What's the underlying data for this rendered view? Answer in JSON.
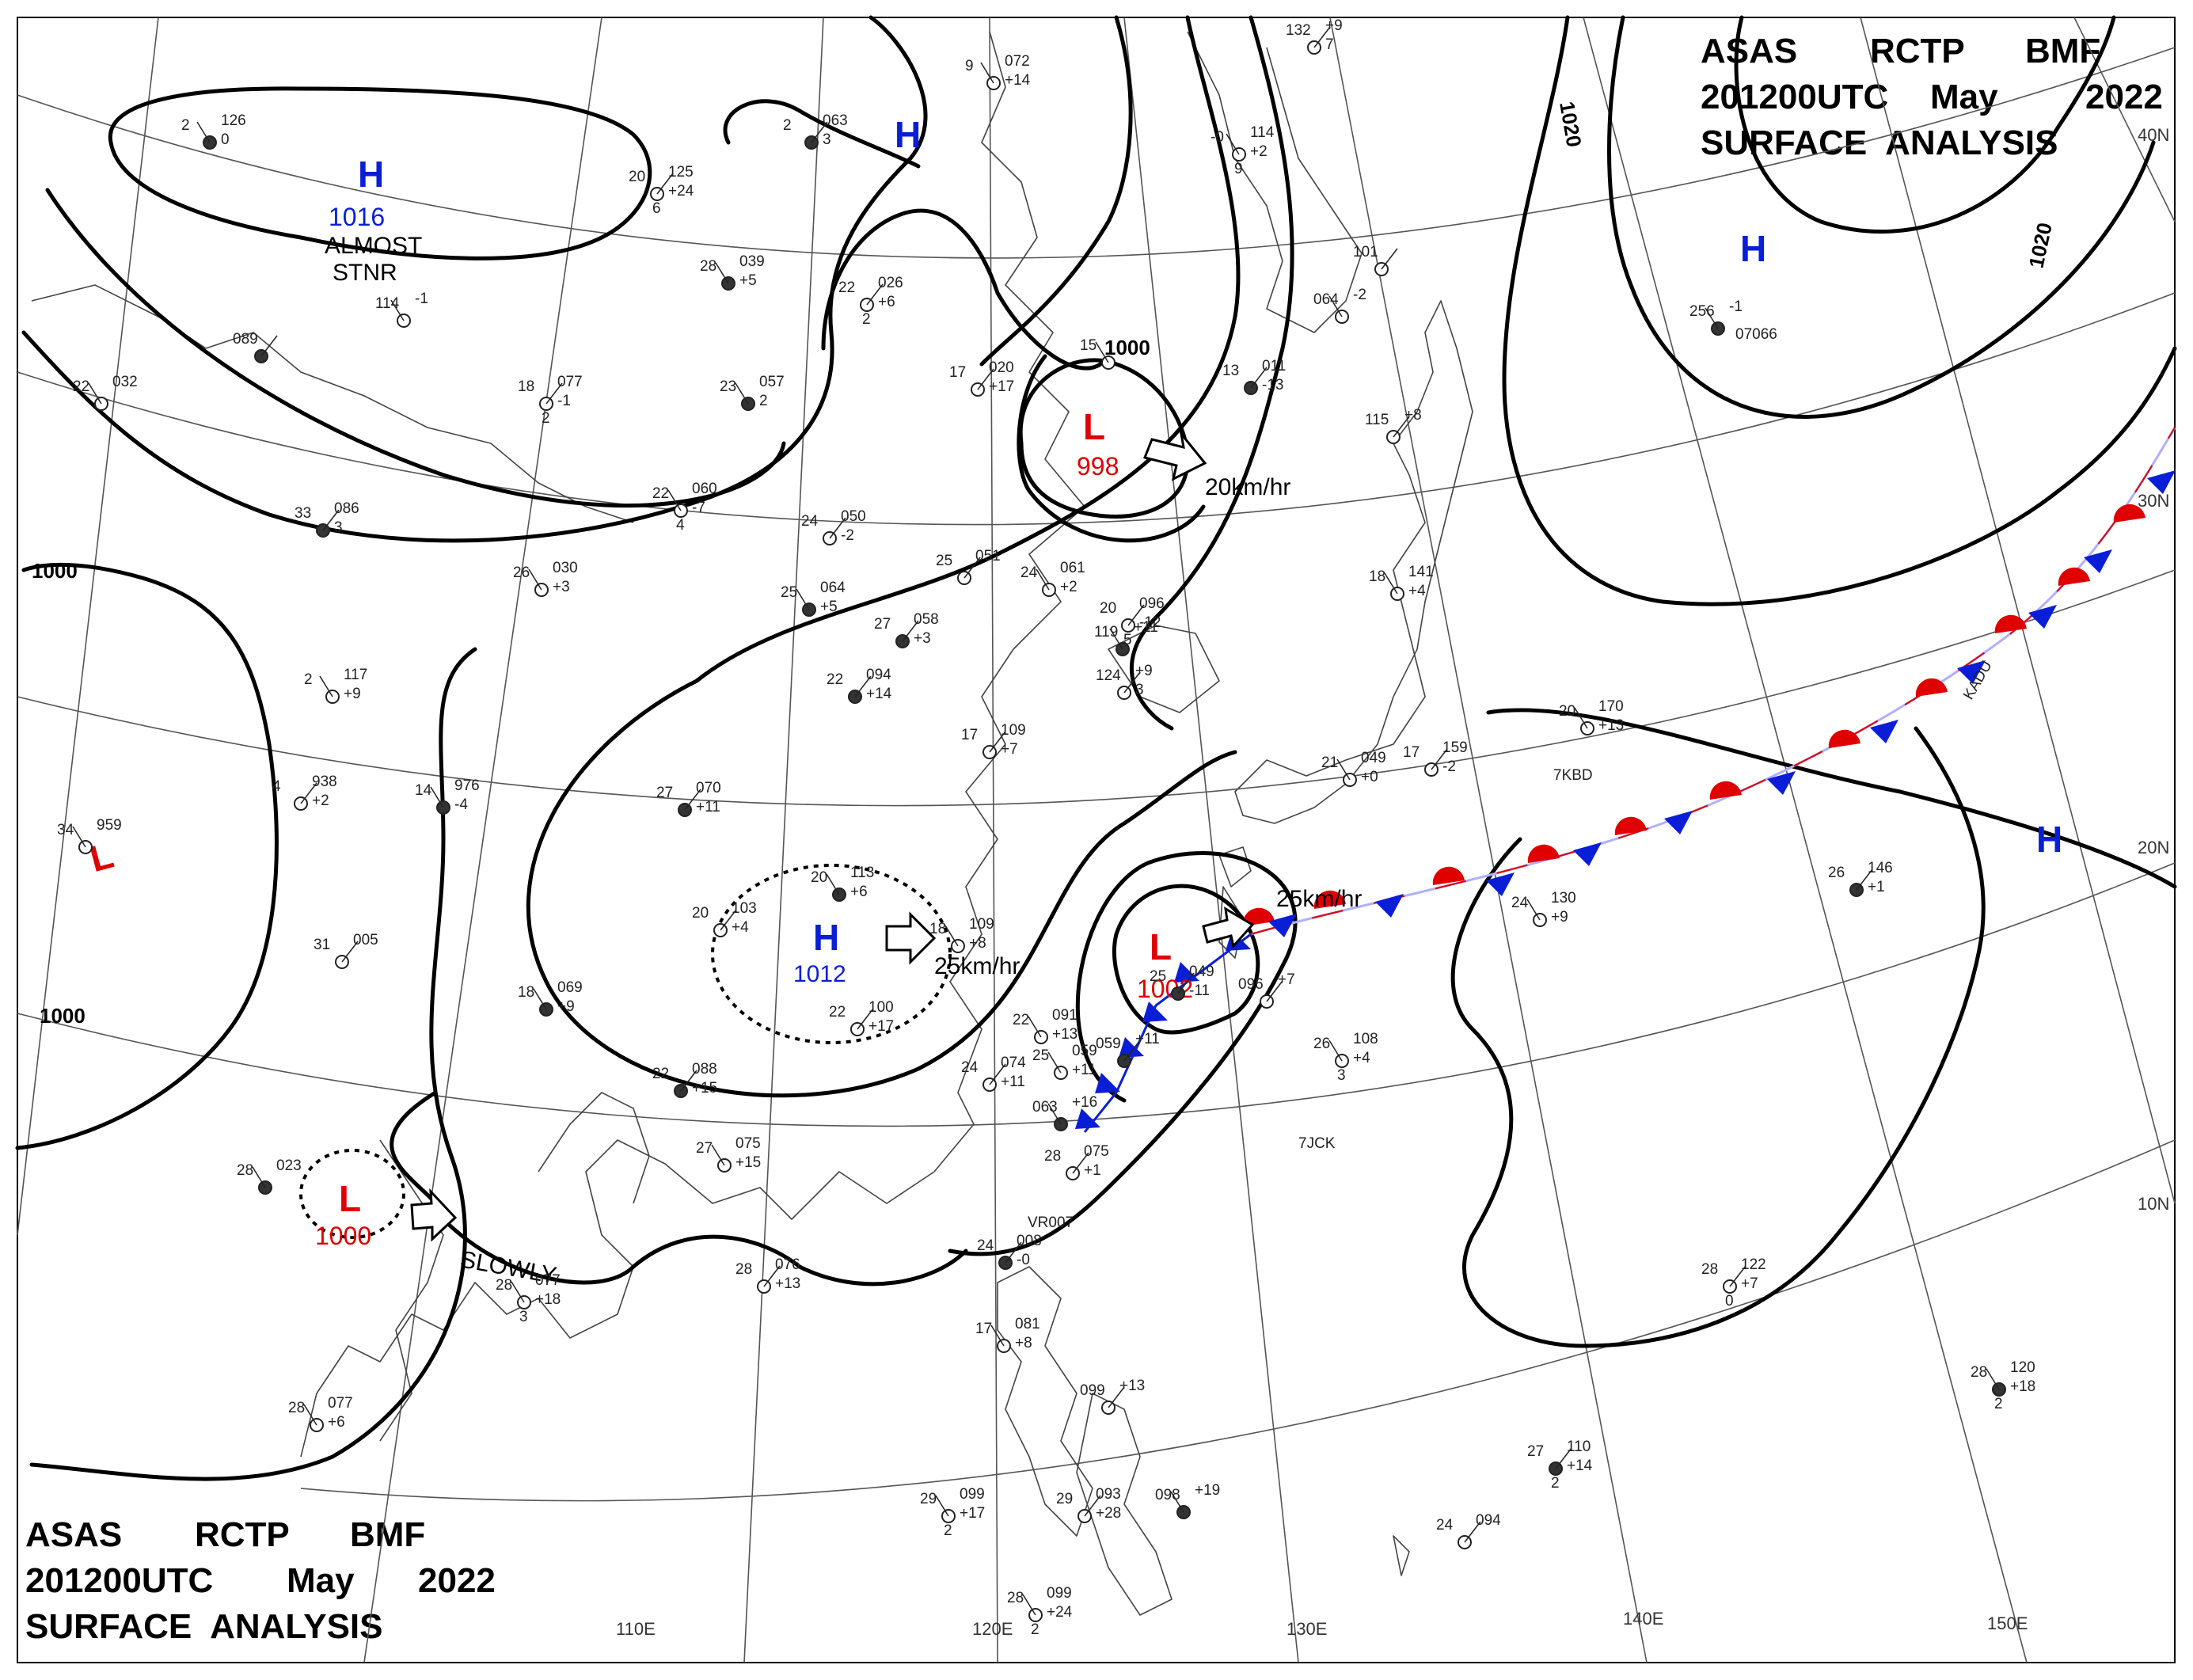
{
  "header": {
    "line1": [
      "ASAS",
      "RCTP",
      "BMF"
    ],
    "line2": [
      "201200UTC",
      "May",
      "2022"
    ],
    "line3": "SURFACE  ANALYSIS"
  },
  "colors": {
    "high": "#0a1ed8",
    "low": "#e00000",
    "isobar": "#000000",
    "grid": "#555555",
    "coast": "#444444",
    "front_warm": "#e00000",
    "front_cold": "#0a1ed8"
  },
  "graticule": {
    "longitude_labels": [
      "110E",
      "120E",
      "130E",
      "140E",
      "150E"
    ],
    "latitude_labels": [
      "40N",
      "30N",
      "20N",
      "10N"
    ]
  },
  "isobar_labels": [
    "1000",
    "1000",
    "1000",
    "1020",
    "1020"
  ],
  "pressure_systems": [
    {
      "type": "H",
      "pressure": "1016",
      "note": "ALMOST STNR"
    },
    {
      "type": "H",
      "pressure": ""
    },
    {
      "type": "H",
      "pressure": ""
    },
    {
      "type": "H",
      "pressure": ""
    },
    {
      "type": "L",
      "pressure": "998",
      "motion": "20km/hr"
    },
    {
      "type": "L",
      "pressure": ""
    },
    {
      "type": "H",
      "pressure": "1012",
      "motion": "25km/hr"
    },
    {
      "type": "L",
      "pressure": "1002",
      "motion": "25km/hr"
    },
    {
      "type": "L",
      "pressure": "1000",
      "motion": "SLOWLY"
    }
  ],
  "station_ids": [
    "KADU",
    "7KBD",
    "7JCK",
    "VR007",
    "07066"
  ],
  "station_obs": [
    [
      "2",
      "126",
      "0"
    ],
    [
      "20",
      "125",
      "+24",
      "6"
    ],
    [
      "9",
      "072",
      "+14"
    ],
    [
      "2",
      "063",
      "3"
    ],
    [
      "-0",
      "114",
      "+2",
      "9"
    ],
    [
      "132",
      "+9",
      "7"
    ],
    [
      "28",
      "039",
      "+5"
    ],
    [
      "22",
      "026",
      "+6",
      "2"
    ],
    [
      "114",
      "-1"
    ],
    [
      "089"
    ],
    [
      "22",
      "032"
    ],
    [
      "18",
      "077",
      "-1",
      "2"
    ],
    [
      "23",
      "057",
      "2"
    ],
    [
      "17",
      "020",
      "+17"
    ],
    [
      "15"
    ],
    [
      "13",
      "011",
      "-13"
    ],
    [
      "064",
      "-2"
    ],
    [
      "101"
    ],
    [
      "256",
      "-1"
    ],
    [
      "115",
      "+8"
    ],
    [
      "22",
      "060",
      "-7",
      "4"
    ],
    [
      "33",
      "086",
      "3"
    ],
    [
      "26",
      "030",
      "+3"
    ],
    [
      "24",
      "050",
      "-2"
    ],
    [
      "25",
      "064",
      "+5"
    ],
    [
      "25",
      "051"
    ],
    [
      "24",
      "061",
      "+2"
    ],
    [
      "27",
      "058",
      "+3"
    ],
    [
      "18",
      "141",
      "+4"
    ],
    [
      "20",
      "096",
      "-12",
      "5"
    ],
    [
      "119",
      "+11"
    ],
    [
      "124",
      "+9",
      "3"
    ],
    [
      "2",
      "117",
      "+9"
    ],
    [
      "22",
      "094",
      "+14"
    ],
    [
      "20",
      "170",
      "+13"
    ],
    [
      "17",
      "109",
      "+7"
    ],
    [
      "14",
      "976",
      "-4"
    ],
    [
      "4",
      "938",
      "+2"
    ],
    [
      "34",
      "959"
    ],
    [
      "27",
      "070",
      "+11"
    ],
    [
      "21",
      "049",
      "+0"
    ],
    [
      "17",
      "159",
      "-2"
    ],
    [
      "20",
      "113",
      "+6"
    ],
    [
      "20",
      "103",
      "+4"
    ],
    [
      "18",
      "109",
      "+8"
    ],
    [
      "26",
      "146",
      "+1"
    ],
    [
      "24",
      "130",
      "+9"
    ],
    [
      "31",
      "005"
    ],
    [
      "18",
      "069",
      "+9"
    ],
    [
      "22",
      "100",
      "+17"
    ],
    [
      "22",
      "091",
      "+13"
    ],
    [
      "059",
      "+11"
    ],
    [
      "25",
      "059",
      "+11"
    ],
    [
      "24",
      "074",
      "+11"
    ],
    [
      "063",
      "+16"
    ],
    [
      "096",
      "+7"
    ],
    [
      "26",
      "108",
      "+4",
      "3"
    ],
    [
      "22",
      "088",
      "+15"
    ],
    [
      "27",
      "075",
      "+15"
    ],
    [
      "28",
      "075",
      "+1"
    ],
    [
      "28",
      "023"
    ],
    [
      "28",
      "076",
      "+13"
    ],
    [
      "28",
      "077",
      "+18",
      "3"
    ],
    [
      "24",
      "008",
      "-0"
    ],
    [
      "17",
      "081",
      "+8"
    ],
    [
      "28",
      "122",
      "+7",
      "0"
    ],
    [
      "28",
      "120",
      "+18",
      "2"
    ],
    [
      "099",
      "+13"
    ],
    [
      "28",
      "077",
      "+6"
    ],
    [
      "27",
      "110",
      "+14",
      "2"
    ],
    [
      "29",
      "099",
      "+17",
      "2"
    ],
    [
      "29",
      "093",
      "+28"
    ],
    [
      "098",
      "+19"
    ],
    [
      "24",
      "094"
    ],
    [
      "28",
      "099",
      "+24",
      "2"
    ],
    [
      "25",
      "049",
      "-11"
    ]
  ]
}
